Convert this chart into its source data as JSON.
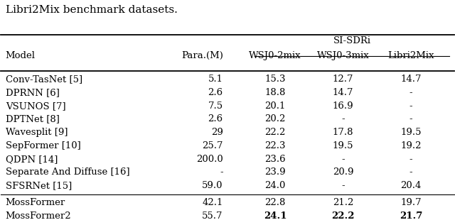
{
  "title": "Libri2Mix benchmark datasets.",
  "col_header_top": "SI-SDRi",
  "col_headers": [
    "Model",
    "Para.(M)",
    "WSJ0-2mix",
    "WSJ0-3mix",
    "Libri2Mix"
  ],
  "rows": [
    [
      "Conv-TasNet [5]",
      "5.1",
      "15.3",
      "12.7",
      "14.7"
    ],
    [
      "DPRNN [6]",
      "2.6",
      "18.8",
      "14.7",
      "-"
    ],
    [
      "VSUNOS [7]",
      "7.5",
      "20.1",
      "16.9",
      "-"
    ],
    [
      "DPTNet [8]",
      "2.6",
      "20.2",
      "-",
      "-"
    ],
    [
      "Wavesplit [9]",
      "29",
      "22.2",
      "17.8",
      "19.5"
    ],
    [
      "SepFormer [10]",
      "25.7",
      "22.3",
      "19.5",
      "19.2"
    ],
    [
      "QDPN [14]",
      "200.0",
      "23.6",
      "-",
      "-"
    ],
    [
      "Separate And Diffuse [16]",
      "-",
      "23.9",
      "20.9",
      "-"
    ],
    [
      "SFSRNet [15]",
      "59.0",
      "24.0",
      "-",
      "20.4"
    ]
  ],
  "bold_rows": [
    [
      "MossFormer",
      "42.1",
      "22.8",
      "21.2",
      "19.7"
    ],
    [
      "MossFormer2",
      "55.7",
      "24.1",
      "22.2",
      "21.7"
    ]
  ],
  "bold_cols_in_last_row": [
    2,
    3,
    4
  ],
  "bg_color": "#ffffff",
  "font_color": "#000000",
  "font_size": 9.5,
  "title_font_size": 11
}
